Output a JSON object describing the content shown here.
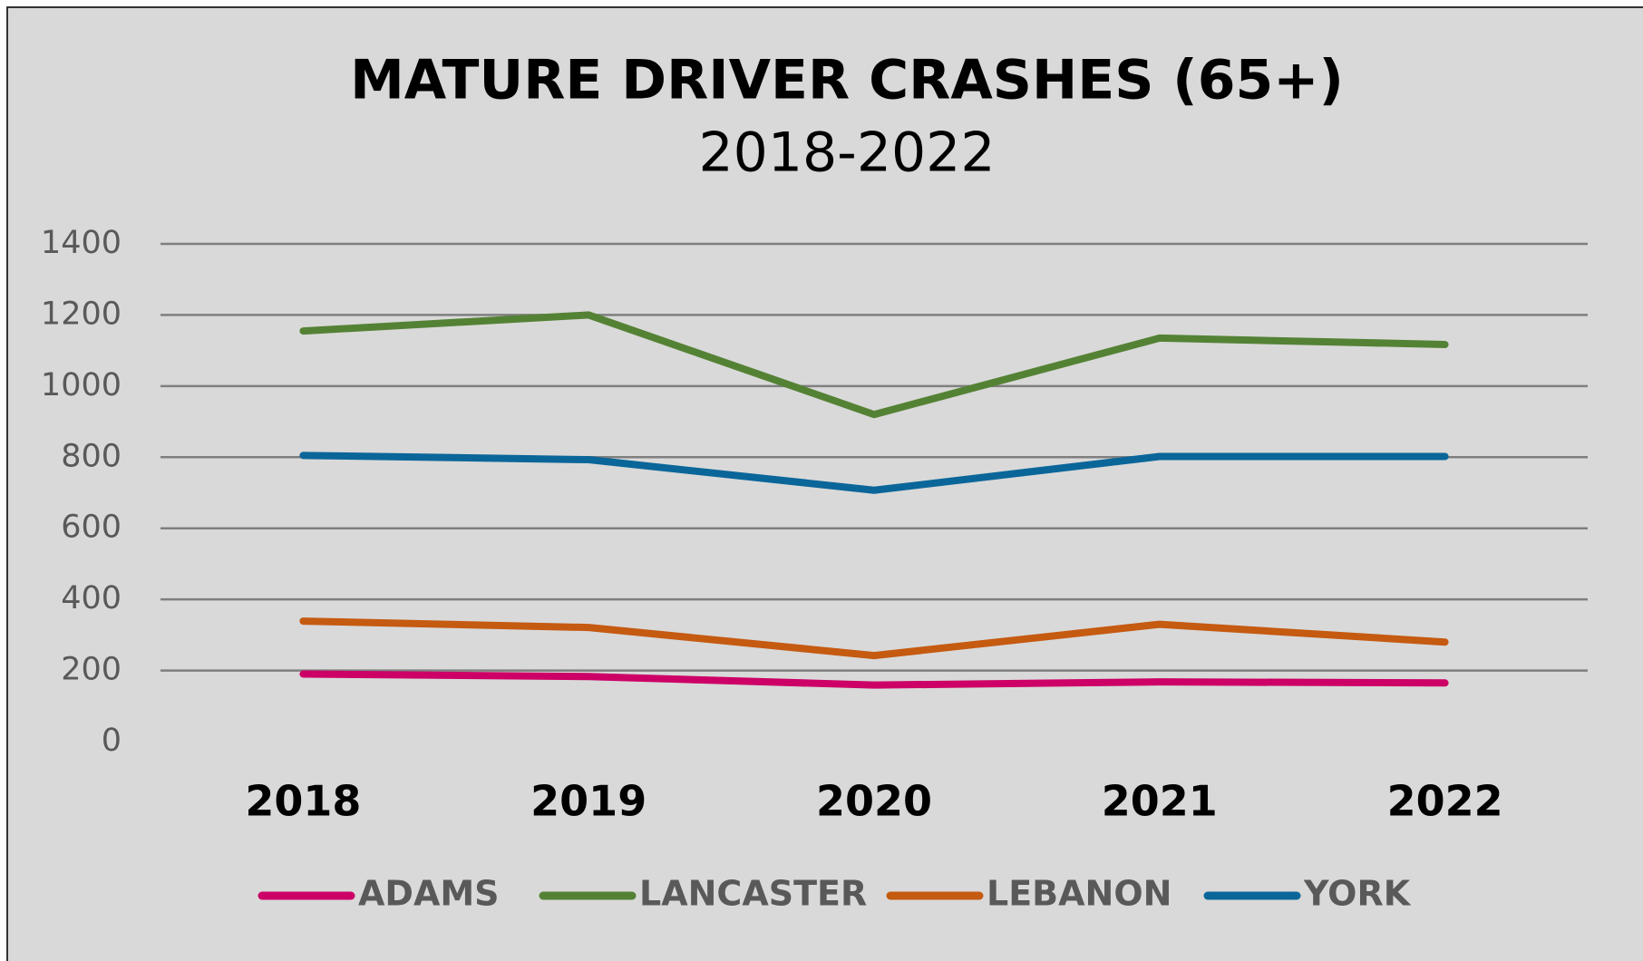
{
  "chart_data": {
    "type": "line",
    "title": "MATURE DRIVER CRASHES (65+)",
    "subtitle": "2018-2022",
    "categories": [
      "2018",
      "2019",
      "2020",
      "2021",
      "2022"
    ],
    "series": [
      {
        "name": "ADAMS",
        "color": "#cc0066",
        "values": [
          190,
          183,
          159,
          168,
          165
        ]
      },
      {
        "name": "LANCASTER",
        "color": "#548235",
        "values": [
          1155,
          1200,
          920,
          1135,
          1117
        ]
      },
      {
        "name": "LEBANON",
        "color": "#c55a11",
        "values": [
          339,
          321,
          242,
          330,
          280
        ]
      },
      {
        "name": "YORK",
        "color": "#0a6699",
        "values": [
          805,
          793,
          707,
          802,
          802
        ]
      }
    ],
    "ylim": [
      0,
      1400
    ],
    "yticks": [
      0,
      200,
      400,
      600,
      800,
      1000,
      1200,
      1400
    ],
    "grid": true,
    "legend": "bottom"
  }
}
